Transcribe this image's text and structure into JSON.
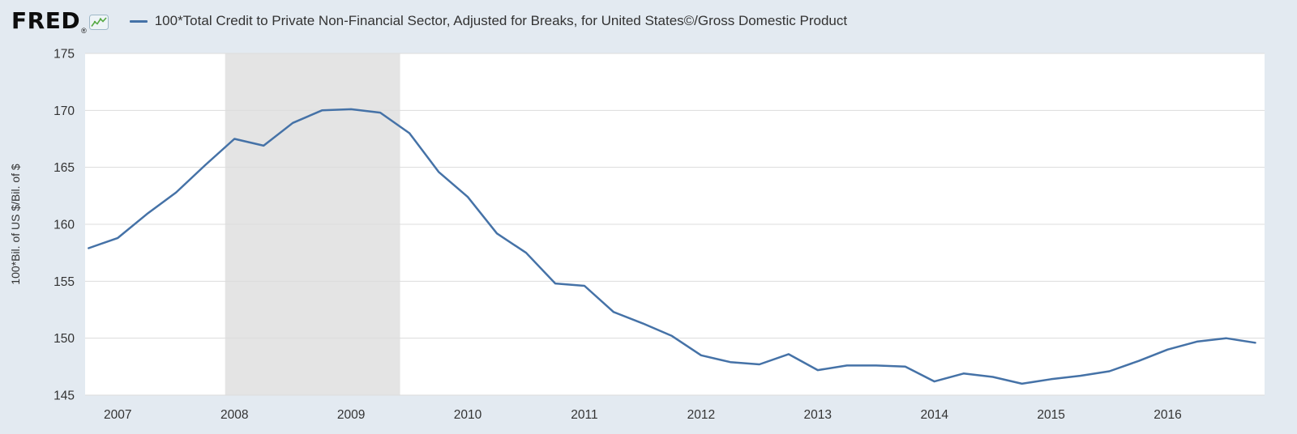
{
  "header": {
    "logo_text": "FRED",
    "registered_mark": "®",
    "legend": {
      "swatch_color": "#4572a7",
      "label": "100*Total Credit to Private Non-Financial Sector, Adjusted for Breaks, for United States©/Gross Domestic Product"
    }
  },
  "chart_data": {
    "type": "line",
    "title": "100*Total Credit to Private Non-Financial Sector, Adjusted for Breaks, for United States©/Gross Domestic Product",
    "xlabel": "",
    "ylabel": "100*Bil. of US $/Bil. of $",
    "ylim": [
      145,
      175
    ],
    "xlim": [
      2006.72,
      2016.83
    ],
    "yticks": [
      145,
      150,
      155,
      160,
      165,
      170,
      175
    ],
    "xticks": [
      2007,
      2008,
      2009,
      2010,
      2011,
      2012,
      2013,
      2014,
      2015,
      2016
    ],
    "grid": "horizontal",
    "legend_position": "top",
    "line_color": "#4572a7",
    "plot_background": "#ffffff",
    "page_background": "#e3eaf1",
    "grid_color": "#dcdcdc",
    "tick_label_color": "#333333",
    "recession_band_color": "#e4e4e4",
    "recession_bands": [
      [
        2007.92,
        2009.42
      ]
    ],
    "series": [
      {
        "name": "100*Total Credit to Private Non-Financial Sector, Adjusted for Breaks, for United States©/Gross Domestic Product",
        "x": [
          2006.75,
          2007.0,
          2007.25,
          2007.5,
          2007.75,
          2008.0,
          2008.25,
          2008.5,
          2008.75,
          2009.0,
          2009.25,
          2009.5,
          2009.75,
          2010.0,
          2010.25,
          2010.5,
          2010.75,
          2011.0,
          2011.25,
          2011.5,
          2011.75,
          2012.0,
          2012.25,
          2012.5,
          2012.75,
          2013.0,
          2013.25,
          2013.5,
          2013.75,
          2014.0,
          2014.25,
          2014.5,
          2014.75,
          2015.0,
          2015.25,
          2015.5,
          2015.75,
          2016.0,
          2016.25,
          2016.5,
          2016.75
        ],
        "values": [
          157.9,
          158.8,
          160.9,
          162.8,
          165.2,
          167.5,
          166.9,
          168.9,
          170.0,
          170.1,
          169.8,
          168.0,
          164.6,
          162.4,
          159.2,
          157.5,
          154.8,
          154.6,
          152.3,
          151.3,
          150.2,
          148.5,
          147.9,
          147.7,
          148.6,
          147.2,
          147.6,
          147.6,
          147.5,
          146.2,
          146.9,
          146.6,
          146.0,
          146.4,
          146.7,
          147.1,
          148.0,
          149.0,
          149.7,
          150.0,
          149.6
        ]
      }
    ]
  }
}
